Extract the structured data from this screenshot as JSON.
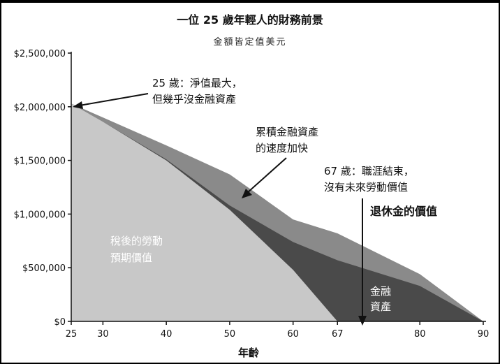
{
  "chart_data": {
    "type": "area",
    "title": "一位 25 歲年輕人的財務前景",
    "subtitle": "金額皆定值美元",
    "xlabel": "年齡",
    "ylabel": "",
    "x_ticks": [
      25,
      30,
      40,
      50,
      60,
      67,
      80,
      90
    ],
    "y_ticks": [
      "$0",
      "$500,000",
      "$1,000,000",
      "$1,500,000",
      "$2,000,000",
      "$2,500,000"
    ],
    "ylim": [
      0,
      2500000
    ],
    "series": [
      {
        "name": "稅後的勞動預期價值",
        "color": "#c8c8c8",
        "points": [
          [
            25,
            2030000
          ],
          [
            30,
            1860000
          ],
          [
            40,
            1500000
          ],
          [
            50,
            1040000
          ],
          [
            60,
            480000
          ],
          [
            67,
            0
          ]
        ]
      },
      {
        "name": "金融資產",
        "color": "#4a4a4a",
        "points": [
          [
            25,
            2030000
          ],
          [
            30,
            1860000
          ],
          [
            40,
            1510000
          ],
          [
            50,
            1080000
          ],
          [
            60,
            740000
          ],
          [
            67,
            570000
          ],
          [
            80,
            330000
          ],
          [
            90,
            0
          ]
        ]
      },
      {
        "name": "退休金的價值",
        "color": "#8a8a8a",
        "points": [
          [
            25,
            2030000
          ],
          [
            30,
            1900000
          ],
          [
            40,
            1640000
          ],
          [
            50,
            1370000
          ],
          [
            60,
            950000
          ],
          [
            67,
            820000
          ],
          [
            80,
            440000
          ],
          [
            90,
            0
          ]
        ]
      }
    ],
    "annotations": {
      "peak_line1": "25 歲：淨值最大，",
      "peak_line2": "但幾乎沒金融資產",
      "accel_line1": "累積金融資產",
      "accel_line2": "的速度加快",
      "retire_line1": "67 歲：職涯結束，",
      "retire_line2": "沒有未來勞動價值",
      "pension": "退休金的價值",
      "labor_line1": "稅後的勞動",
      "labor_line2": "預期價值",
      "assets_line1": "金融",
      "assets_line2": "資產"
    }
  }
}
